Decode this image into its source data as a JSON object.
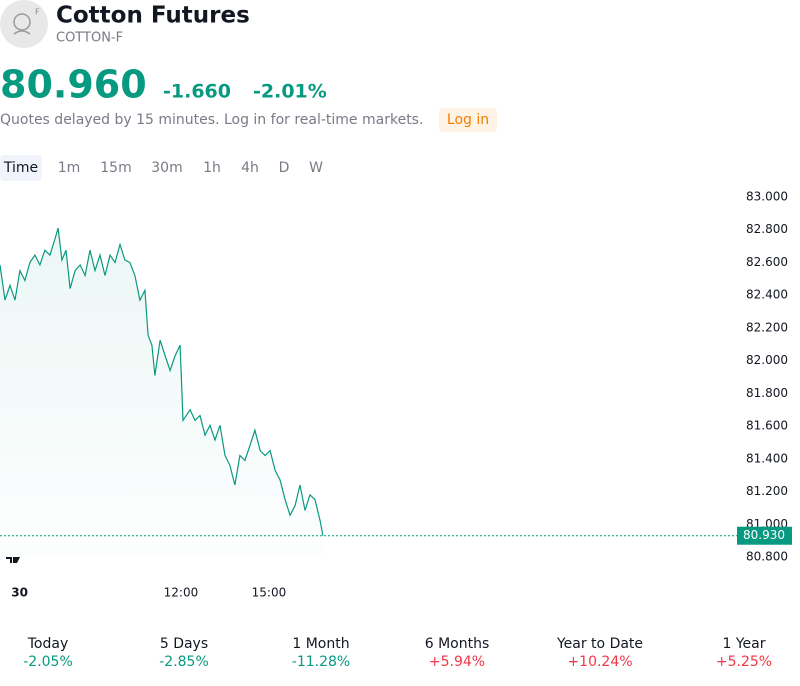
{
  "header": {
    "title": "Cotton Futures",
    "symbol": "COTTON-F",
    "price": "80.960",
    "change": "-1.660",
    "change_percent": "-2.01%",
    "notice": "Quotes delayed by 15 minutes. Log in for real-time markets.",
    "login": "Log in"
  },
  "timeframes": [
    "Time",
    "1m",
    "15m",
    "30m",
    "1h",
    "4h",
    "D",
    "W"
  ],
  "chart_data": {
    "type": "area",
    "color": "#089981",
    "x": [
      5.83,
      6.0,
      6.17,
      6.34,
      6.51,
      6.68,
      6.85,
      7.02,
      7.19,
      7.36,
      7.53,
      7.7,
      7.81,
      7.94,
      8.08,
      8.22,
      8.39,
      8.56,
      8.73,
      8.9,
      9.07,
      9.24,
      9.41,
      9.58,
      9.75,
      9.92,
      10.09,
      10.26,
      10.43,
      10.6,
      10.77,
      10.88,
      11.01,
      11.11,
      11.29,
      11.46,
      11.63,
      11.8,
      11.97,
      12.07,
      12.31,
      12.48,
      12.65,
      12.82,
      12.99,
      13.16,
      13.33,
      13.5,
      13.67,
      13.84,
      14.01,
      14.18,
      14.35,
      14.52,
      14.7,
      14.87,
      15.04,
      15.21,
      15.38,
      15.55,
      15.72,
      15.89,
      16.06,
      16.23,
      16.4,
      16.57,
      16.74,
      16.84
    ],
    "values": [
      82.585,
      82.37,
      82.46,
      82.37,
      82.55,
      82.49,
      82.6,
      82.645,
      82.585,
      82.675,
      82.645,
      82.74,
      82.81,
      82.615,
      82.675,
      82.44,
      82.55,
      82.585,
      82.52,
      82.675,
      82.55,
      82.645,
      82.52,
      82.645,
      82.6,
      82.71,
      82.615,
      82.6,
      82.52,
      82.37,
      82.43,
      82.155,
      82.095,
      81.91,
      82.125,
      82.03,
      81.94,
      82.03,
      82.095,
      81.635,
      81.7,
      81.635,
      81.665,
      81.545,
      81.605,
      81.515,
      81.605,
      81.42,
      81.36,
      81.24,
      81.42,
      81.39,
      81.48,
      81.575,
      81.45,
      81.42,
      81.45,
      81.33,
      81.27,
      81.15,
      81.055,
      81.115,
      81.24,
      81.085,
      81.18,
      81.15,
      81.025,
      80.93
    ],
    "xlim": [
      5.83,
      30.89
    ],
    "xticks": [
      {
        "value": 6.5,
        "label": "30"
      },
      {
        "value": 12,
        "label": "12:00"
      },
      {
        "value": 15,
        "label": "15:00"
      }
    ],
    "ylim": [
      80.8,
      83.0
    ],
    "yticks": [
      {
        "value": 80.8,
        "label": "80.800"
      },
      {
        "value": 81.0,
        "label": "81.000"
      },
      {
        "value": 81.2,
        "label": "81.200"
      },
      {
        "value": 81.4,
        "label": "81.400"
      },
      {
        "value": 81.6,
        "label": "81.600"
      },
      {
        "value": 81.8,
        "label": "81.800"
      },
      {
        "value": 82.0,
        "label": "82.000"
      },
      {
        "value": 82.2,
        "label": "82.200"
      },
      {
        "value": 82.4,
        "label": "82.400"
      },
      {
        "value": 82.6,
        "label": "82.600"
      },
      {
        "value": 82.8,
        "label": "82.800"
      },
      {
        "value": 83.0,
        "label": "83.000"
      }
    ],
    "price_line": {
      "value": 80.93,
      "label": "80.930"
    }
  },
  "periods": [
    {
      "label": "Today",
      "change": "-2.05%",
      "color": "#089981"
    },
    {
      "label": "5 Days",
      "change": "-2.85%",
      "color": "#089981"
    },
    {
      "label": "1 Month",
      "change": "-11.28%",
      "color": "#089981"
    },
    {
      "label": "6 Months",
      "change": "+5.94%",
      "color": "#f23645"
    },
    {
      "label": "Year to Date",
      "change": "+10.24%",
      "color": "#f23645"
    },
    {
      "label": "1 Year",
      "change": "+5.25%",
      "color": "#f23645"
    }
  ]
}
